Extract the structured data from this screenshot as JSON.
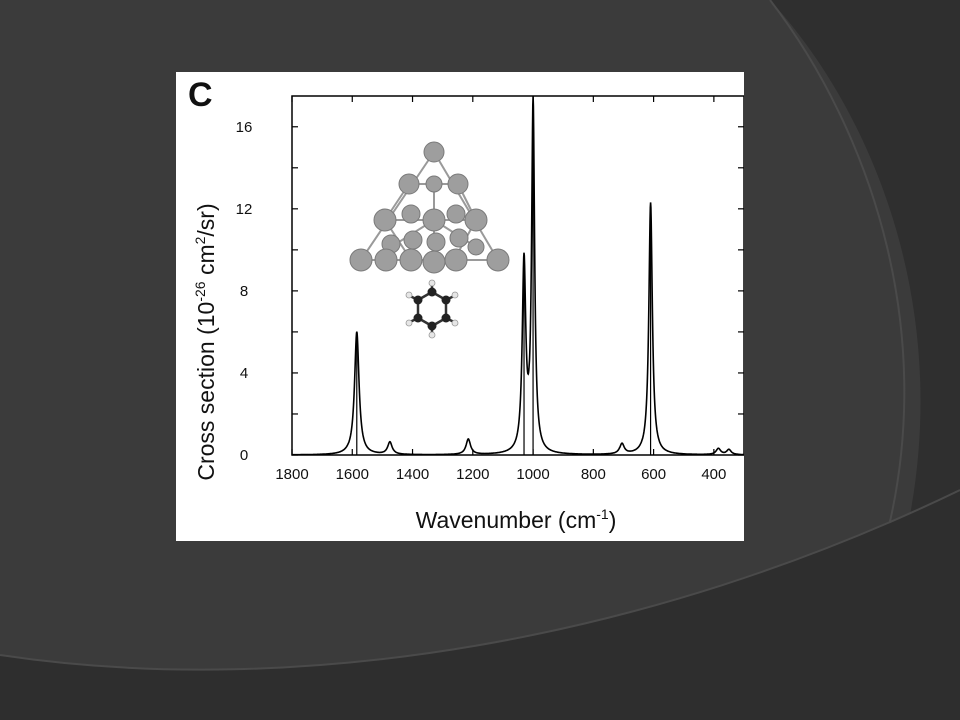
{
  "slide": {
    "background_color": "#3b3b3b",
    "accent_color": "#2e2e2e"
  },
  "chart_data": {
    "type": "line",
    "panel_label": "C",
    "title": "",
    "xlabel": {
      "text": "Wavenumber (cm",
      "sup": "-1",
      "tail": ")"
    },
    "ylabel": {
      "text": "Cross section (10",
      "sup1": "-26",
      "mid": " cm",
      "sup2": "2",
      "tail": "/sr)"
    },
    "xlim": [
      1800,
      300
    ],
    "x_reversed": true,
    "ylim": [
      0,
      17.5
    ],
    "x_ticks": [
      1800,
      1600,
      1400,
      1200,
      1000,
      800,
      600,
      400
    ],
    "y_ticks": [
      0,
      4,
      8,
      12,
      16
    ],
    "line_color": "#000000",
    "series": [
      {
        "peaks": [
          {
            "x": 1585,
            "y": 6.0,
            "width": 9
          },
          {
            "x": 1475,
            "y": 0.6,
            "width": 9
          },
          {
            "x": 1215,
            "y": 0.75,
            "width": 9
          },
          {
            "x": 1030,
            "y": 9.2,
            "width": 7
          },
          {
            "x": 1000,
            "y": 17.0,
            "width": 6
          },
          {
            "x": 705,
            "y": 0.5,
            "width": 9
          },
          {
            "x": 610,
            "y": 12.3,
            "width": 7
          },
          {
            "x": 385,
            "y": 0.3,
            "width": 9
          },
          {
            "x": 350,
            "y": 0.25,
            "width": 9
          }
        ],
        "stick_positions": [
          1585,
          1030,
          1000,
          610
        ]
      }
    ],
    "grid": false,
    "inset": {
      "description_icon": "metal-cluster-with-benzene-molecule-icon"
    }
  }
}
